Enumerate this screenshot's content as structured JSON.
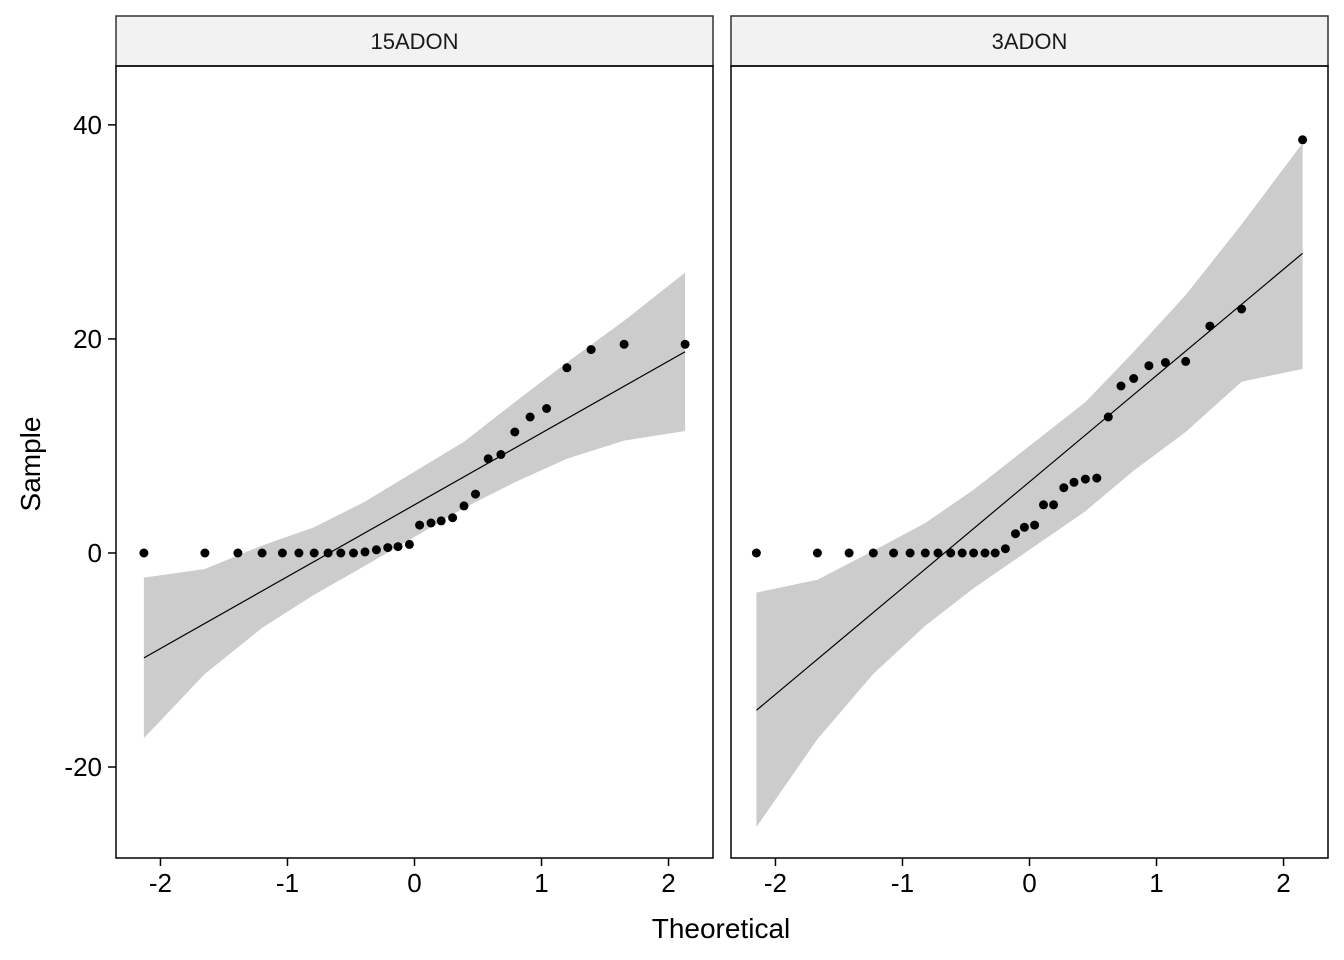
{
  "chart_data": {
    "type": "scatter",
    "xlabel": "Theoretical",
    "ylabel": "Sample",
    "xlim": [
      -2.35,
      2.35
    ],
    "ylim": [
      -28.5,
      45.5
    ],
    "x_ticks": [
      -2,
      -1,
      0,
      1,
      2
    ],
    "y_ticks": [
      -20,
      0,
      20,
      40
    ],
    "grid": false,
    "colors": {
      "points": "#000000",
      "line": "#000000",
      "band": "#cccccc",
      "strip": "#f2f2f2"
    },
    "panels": [
      {
        "label": "15ADON",
        "points": {
          "x": [
            -2.13,
            -1.65,
            -1.39,
            -1.2,
            -1.04,
            -0.91,
            -0.79,
            -0.68,
            -0.58,
            -0.48,
            -0.39,
            -0.3,
            -0.21,
            -0.13,
            -0.04,
            0.04,
            0.13,
            0.21,
            0.3,
            0.39,
            0.48,
            0.58,
            0.68,
            0.79,
            0.91,
            1.04,
            1.2,
            1.39,
            1.65,
            2.13
          ],
          "y": [
            0,
            0,
            0,
            0,
            0,
            0,
            0,
            0,
            0,
            0,
            0.1,
            0.3,
            0.5,
            0.6,
            0.8,
            2.6,
            2.8,
            3.0,
            3.3,
            4.4,
            5.5,
            8.8,
            9.2,
            11.3,
            12.7,
            13.5,
            17.3,
            19.0,
            19.5,
            19.5
          ]
        },
        "fit_line": {
          "x": [
            -2.13,
            2.13
          ],
          "y": [
            -9.8,
            18.8
          ]
        },
        "band": {
          "x": [
            -2.13,
            -1.65,
            -1.2,
            -0.79,
            -0.39,
            0,
            0.39,
            0.79,
            1.2,
            1.65,
            2.13
          ],
          "lower": [
            -17.3,
            -11.3,
            -7.0,
            -3.9,
            -1.2,
            1.5,
            4.2,
            6.6,
            8.8,
            10.5,
            11.4
          ],
          "upper": [
            -2.3,
            -1.5,
            0.7,
            2.4,
            4.8,
            7.6,
            10.4,
            14.1,
            17.8,
            21.7,
            26.2
          ]
        }
      },
      {
        "label": "3ADON",
        "points": {
          "x": [
            -2.15,
            -1.67,
            -1.42,
            -1.23,
            -1.07,
            -0.94,
            -0.82,
            -0.72,
            -0.62,
            -0.53,
            -0.44,
            -0.35,
            -0.27,
            -0.19,
            -0.11,
            -0.04,
            0.04,
            0.11,
            0.19,
            0.27,
            0.35,
            0.44,
            0.53,
            0.62,
            0.72,
            0.82,
            0.94,
            1.07,
            1.23,
            1.42,
            1.67,
            2.15
          ],
          "y": [
            0,
            0,
            0,
            0,
            0,
            0,
            0,
            0,
            0,
            0,
            0,
            0,
            0,
            0.4,
            1.8,
            2.4,
            2.6,
            4.5,
            4.5,
            6.1,
            6.6,
            6.9,
            7.0,
            12.7,
            15.6,
            16.3,
            17.5,
            17.8,
            17.9,
            21.2,
            22.8,
            38.6
          ]
        },
        "fit_line": {
          "x": [
            -2.15,
            2.15
          ],
          "y": [
            -14.7,
            28.0
          ]
        },
        "band": {
          "x": [
            -2.15,
            -1.67,
            -1.23,
            -0.82,
            -0.44,
            0,
            0.44,
            0.82,
            1.23,
            1.67,
            2.15
          ],
          "lower": [
            -25.6,
            -17.4,
            -11.3,
            -6.8,
            -3.3,
            0.3,
            3.9,
            7.7,
            11.3,
            16.0,
            17.2
          ],
          "upper": [
            -3.7,
            -2.5,
            0.2,
            2.8,
            5.9,
            10.0,
            14.1,
            18.8,
            24.1,
            30.7,
            38.3
          ]
        }
      }
    ]
  }
}
